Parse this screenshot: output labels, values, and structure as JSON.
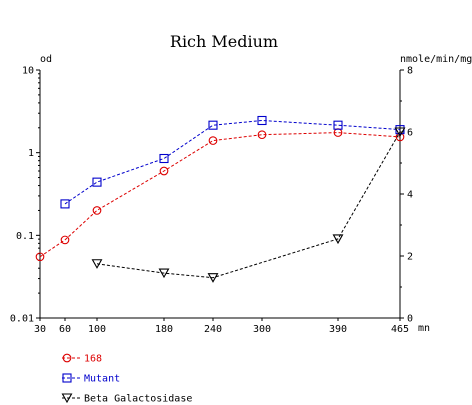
{
  "chart_data": {
    "type": "line",
    "title": "Rich Medium",
    "x_unit": "mn",
    "left_unit": "od",
    "right_unit": "nmole/min/mg",
    "x_ticks": [
      30,
      60,
      100,
      180,
      240,
      300,
      390,
      465
    ],
    "xlim": [
      30,
      465
    ],
    "left_axis": {
      "scale": "log",
      "ylim": [
        0.01,
        10
      ],
      "ticks": [
        0.01,
        0.1,
        1,
        10
      ],
      "tick_labels": [
        "0.01",
        "0.1",
        "1",
        "10"
      ]
    },
    "right_axis": {
      "scale": "linear",
      "ylim": [
        0,
        8
      ],
      "ticks": [
        0,
        2,
        4,
        6,
        8
      ],
      "tick_labels": [
        "0",
        "2",
        "4",
        "6",
        "8"
      ]
    },
    "series": [
      {
        "name": "168",
        "axis": "left",
        "color": "#dd0000",
        "marker": "circle",
        "x": [
          30,
          60,
          100,
          180,
          240,
          300,
          390,
          465
        ],
        "y": [
          0.055,
          0.088,
          0.2,
          0.6,
          1.4,
          1.65,
          1.75,
          1.55
        ]
      },
      {
        "name": "Mutant",
        "axis": "left",
        "color": "#0000cc",
        "marker": "square",
        "x": [
          60,
          100,
          180,
          240,
          300,
          390,
          465
        ],
        "y": [
          0.24,
          0.44,
          0.85,
          2.15,
          2.45,
          2.15,
          1.9
        ]
      },
      {
        "name": "Beta Galactosidase",
        "axis": "right",
        "color": "#000000",
        "marker": "triangle-down",
        "x": [
          100,
          180,
          240,
          390,
          465
        ],
        "y": [
          1.75,
          1.45,
          1.3,
          2.55,
          6.0
        ]
      }
    ],
    "legend_position": "bottom-left"
  }
}
